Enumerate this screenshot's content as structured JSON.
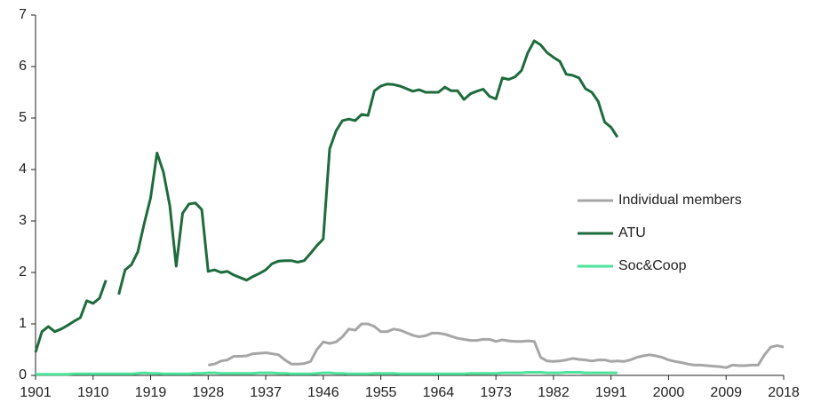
{
  "chart_data": {
    "type": "line",
    "x": [
      1901,
      1902,
      1903,
      1904,
      1905,
      1906,
      1907,
      1908,
      1909,
      1910,
      1911,
      1912,
      1913,
      1914,
      1915,
      1916,
      1917,
      1918,
      1919,
      1920,
      1921,
      1922,
      1923,
      1924,
      1925,
      1926,
      1927,
      1928,
      1929,
      1930,
      1931,
      1932,
      1933,
      1934,
      1935,
      1936,
      1937,
      1938,
      1939,
      1940,
      1941,
      1942,
      1943,
      1944,
      1945,
      1946,
      1947,
      1948,
      1949,
      1950,
      1951,
      1952,
      1953,
      1954,
      1955,
      1956,
      1957,
      1958,
      1959,
      1960,
      1961,
      1962,
      1963,
      1964,
      1965,
      1966,
      1967,
      1968,
      1969,
      1970,
      1971,
      1972,
      1973,
      1974,
      1975,
      1976,
      1977,
      1978,
      1979,
      1980,
      1981,
      1982,
      1983,
      1984,
      1985,
      1986,
      1987,
      1988,
      1989,
      1990,
      1991,
      1992,
      1993,
      1994,
      1995,
      1996,
      1997,
      1998,
      1999,
      2000,
      2001,
      2002,
      2003,
      2004,
      2005,
      2006,
      2007,
      2008,
      2009,
      2010,
      2011,
      2012,
      2013,
      2014,
      2015,
      2016,
      2017,
      2018
    ],
    "series": [
      {
        "name": "Individual members",
        "color": "#a6a6a6",
        "values": [
          null,
          null,
          null,
          null,
          null,
          null,
          null,
          null,
          null,
          null,
          null,
          null,
          null,
          null,
          null,
          null,
          null,
          null,
          null,
          null,
          null,
          null,
          null,
          null,
          null,
          null,
          null,
          0.2,
          0.22,
          0.28,
          0.3,
          0.37,
          0.37,
          0.38,
          0.42,
          0.43,
          0.44,
          0.42,
          0.4,
          0.3,
          0.22,
          0.22,
          0.23,
          0.27,
          0.5,
          0.65,
          0.62,
          0.65,
          0.75,
          0.9,
          0.88,
          1.0,
          1.0,
          0.95,
          0.85,
          0.85,
          0.9,
          0.88,
          0.83,
          0.78,
          0.75,
          0.77,
          0.82,
          0.82,
          0.8,
          0.76,
          0.72,
          0.7,
          0.68,
          0.68,
          0.7,
          0.7,
          0.66,
          0.69,
          0.67,
          0.66,
          0.66,
          0.67,
          0.66,
          0.35,
          0.28,
          0.27,
          0.28,
          0.3,
          0.33,
          0.31,
          0.3,
          0.28,
          0.3,
          0.3,
          0.27,
          0.28,
          0.27,
          0.3,
          0.35,
          0.38,
          0.4,
          0.38,
          0.35,
          0.3,
          0.27,
          0.25,
          0.22,
          0.2,
          0.2,
          0.19,
          0.18,
          0.17,
          0.15,
          0.2,
          0.19,
          0.19,
          0.2,
          0.2,
          0.4,
          0.55,
          0.58,
          0.55
        ]
      },
      {
        "name": "ATU",
        "color": "#1e6b3c",
        "values": [
          0.45,
          0.85,
          0.95,
          0.85,
          0.9,
          0.97,
          1.05,
          1.12,
          1.45,
          1.4,
          1.5,
          1.85,
          null,
          1.57,
          2.05,
          2.15,
          2.4,
          2.95,
          3.45,
          4.32,
          3.95,
          3.3,
          2.12,
          3.15,
          3.33,
          3.35,
          3.22,
          2.02,
          2.05,
          2.0,
          2.02,
          1.95,
          1.9,
          1.85,
          1.92,
          1.98,
          2.05,
          2.17,
          2.22,
          2.23,
          2.23,
          2.2,
          2.23,
          2.37,
          2.52,
          2.65,
          4.4,
          4.75,
          4.95,
          4.98,
          4.95,
          5.07,
          5.05,
          5.53,
          5.62,
          5.66,
          5.65,
          5.62,
          5.57,
          5.52,
          5.55,
          5.5,
          5.5,
          5.5,
          5.6,
          5.53,
          5.53,
          5.36,
          5.47,
          5.52,
          5.56,
          5.42,
          5.37,
          5.78,
          5.75,
          5.8,
          5.92,
          6.27,
          6.5,
          6.42,
          6.27,
          6.18,
          6.1,
          5.85,
          5.83,
          5.78,
          5.57,
          5.5,
          5.32,
          4.92,
          4.82,
          4.63,
          null,
          null,
          null,
          null,
          null,
          null,
          null,
          null,
          null,
          null,
          null,
          null,
          null,
          null,
          null,
          null,
          null,
          null,
          null,
          null,
          null,
          null,
          null,
          null,
          null,
          null
        ]
      },
      {
        "name": "Soc&Coop",
        "color": "#4de39a",
        "values": [
          0.02,
          0.02,
          0.02,
          0.02,
          0.02,
          0.02,
          0.03,
          0.03,
          0.03,
          0.03,
          0.03,
          0.03,
          0.03,
          0.03,
          0.03,
          0.03,
          0.04,
          0.05,
          0.04,
          0.04,
          0.03,
          0.03,
          0.03,
          0.03,
          0.03,
          0.04,
          0.04,
          0.05,
          0.05,
          0.04,
          0.04,
          0.04,
          0.04,
          0.04,
          0.04,
          0.05,
          0.05,
          0.05,
          0.04,
          0.04,
          0.03,
          0.03,
          0.03,
          0.03,
          0.04,
          0.05,
          0.05,
          0.04,
          0.04,
          0.03,
          0.03,
          0.03,
          0.03,
          0.04,
          0.04,
          0.04,
          0.04,
          0.03,
          0.03,
          0.03,
          0.03,
          0.03,
          0.03,
          0.03,
          0.03,
          0.03,
          0.03,
          0.03,
          0.04,
          0.04,
          0.04,
          0.04,
          0.04,
          0.05,
          0.05,
          0.05,
          0.05,
          0.06,
          0.06,
          0.06,
          0.05,
          0.05,
          0.05,
          0.06,
          0.06,
          0.06,
          0.05,
          0.05,
          0.05,
          0.05,
          0.05,
          0.05,
          null,
          null,
          null,
          null,
          null,
          null,
          null,
          null,
          null,
          null,
          null,
          null,
          null,
          null,
          null,
          null,
          null,
          null,
          null,
          null,
          null,
          null,
          null,
          null,
          null,
          null
        ]
      }
    ],
    "xlim": [
      1901,
      2018
    ],
    "ylim": [
      0,
      7
    ],
    "xticks": [
      1901,
      1910,
      1919,
      1928,
      1937,
      1946,
      1955,
      1964,
      1973,
      1982,
      1991,
      2000,
      2009,
      2018
    ],
    "yticks": [
      0,
      1,
      2,
      3,
      4,
      5,
      6,
      7
    ],
    "legend": "right"
  }
}
